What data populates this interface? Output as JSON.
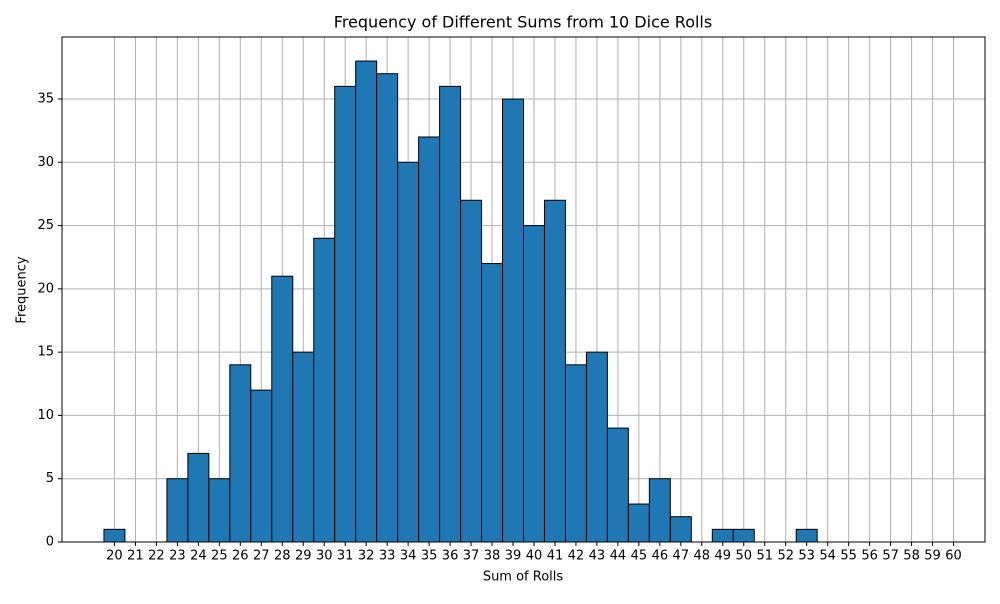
{
  "chart_data": {
    "type": "histogram",
    "title": "Frequency of Different Sums from 10 Dice Rolls",
    "xlabel": "Sum of Rolls",
    "ylabel": "Frequency",
    "bins": [
      19.5,
      20.5,
      21.5,
      22.5,
      23.5,
      24.5,
      25.5,
      26.5,
      27.5,
      28.5,
      29.5,
      30.5,
      31.5,
      32.5,
      33.5,
      34.5,
      35.5,
      36.5,
      37.5,
      38.5,
      39.5,
      40.5,
      41.5,
      42.5,
      43.5,
      44.5,
      45.5,
      46.5,
      47.5,
      48.5,
      49.5,
      50.5,
      51.5,
      52.5,
      53.5,
      54.5,
      55.5,
      56.5,
      57.5,
      58.5,
      59.5
    ],
    "values": [
      1,
      0,
      0,
      5,
      7,
      5,
      14,
      12,
      21,
      15,
      24,
      36,
      38,
      37,
      30,
      32,
      36,
      27,
      22,
      35,
      25,
      27,
      14,
      15,
      9,
      3,
      5,
      2,
      0,
      1,
      1,
      0,
      0,
      1,
      0,
      0,
      0,
      0,
      0,
      0
    ],
    "color": "#1f77b4",
    "edgecolor": "#000000",
    "xlim": [
      17.5,
      61.5
    ],
    "xticks": [
      20,
      21,
      22,
      23,
      24,
      25,
      26,
      27,
      28,
      29,
      30,
      31,
      32,
      33,
      34,
      35,
      36,
      37,
      38,
      39,
      40,
      41,
      42,
      43,
      44,
      45,
      46,
      47,
      48,
      49,
      50,
      51,
      52,
      53,
      54,
      55,
      56,
      57,
      58,
      59,
      60
    ],
    "ylim": [
      0,
      39.9
    ],
    "yticks": [
      0,
      5,
      10,
      15,
      20,
      25,
      30,
      35
    ],
    "grid": true
  }
}
